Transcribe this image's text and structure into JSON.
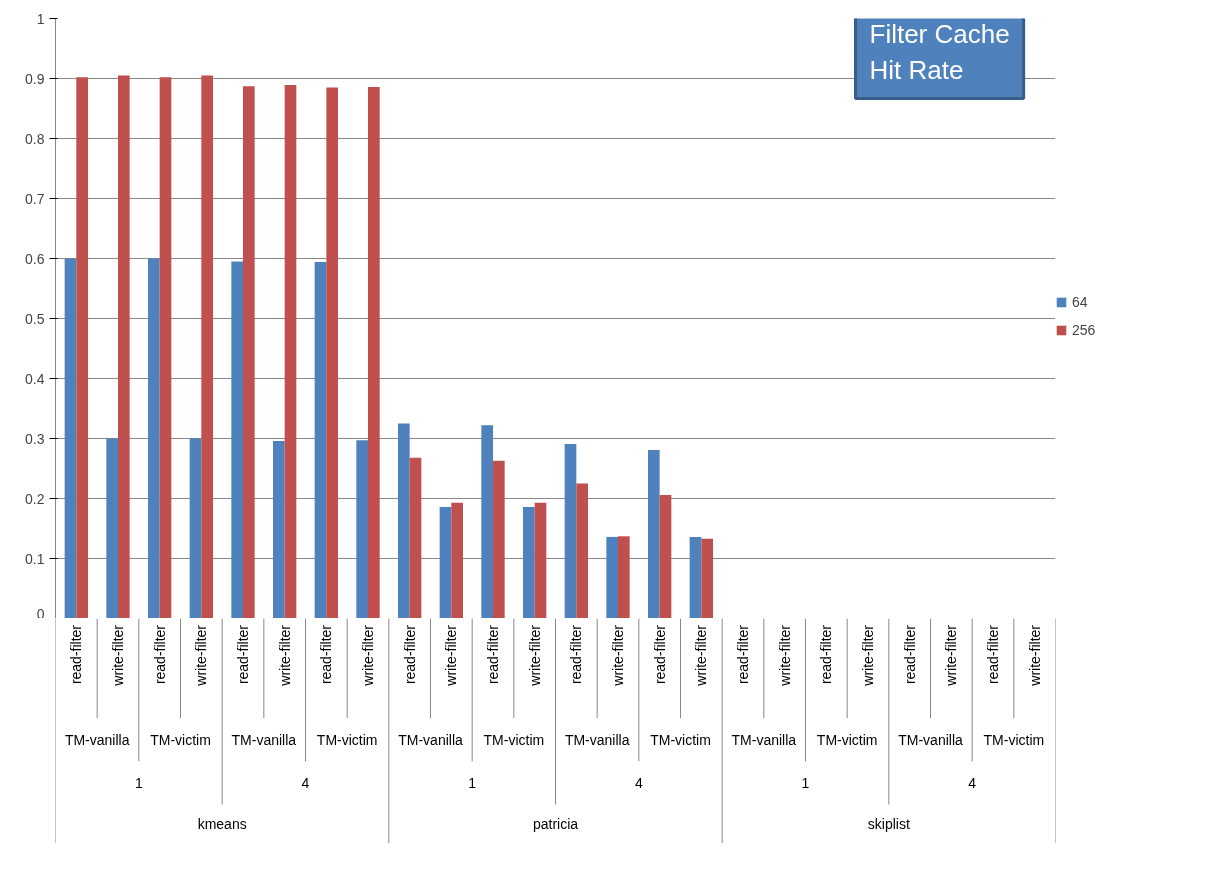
{
  "chart_data": {
    "type": "bar",
    "title": "Filter Cache Hit Rate",
    "categories": [
      "read-filter",
      "write-filter",
      "read-filter",
      "write-filter",
      "read-filter",
      "write-filter",
      "read-filter",
      "write-filter",
      "read-filter",
      "write-filter",
      "read-filter",
      "write-filter",
      "read-filter",
      "write-filter",
      "read-filter",
      "write-filter",
      "read-filter",
      "write-filter",
      "read-filter",
      "write-filter",
      "read-filter",
      "write-filter",
      "read-filter",
      "write-filter"
    ],
    "series": [
      {
        "name": "64",
        "color": "#4f81bd",
        "values": [
          0.6,
          0.3,
          0.6,
          0.3,
          0.595,
          0.296,
          0.594,
          0.297,
          0.325,
          0.186,
          0.322,
          0.186,
          0.291,
          0.136,
          0.281,
          0.136,
          0,
          0,
          0,
          0,
          0,
          0,
          0,
          0
        ]
      },
      {
        "name": "256",
        "color": "#c0504d",
        "values": [
          0.902,
          0.905,
          0.902,
          0.905,
          0.887,
          0.889,
          0.885,
          0.886,
          0.268,
          0.193,
          0.263,
          0.193,
          0.225,
          0.137,
          0.206,
          0.133,
          0,
          0,
          0,
          0,
          0,
          0,
          0,
          0
        ]
      }
    ],
    "annotations": [
      "TM-vanilla",
      "TM-victim",
      "TM-vanilla",
      "TM-victim",
      "TM-vanilla",
      "TM-victim",
      "TM-vanilla",
      "TM-victim",
      "TM-vanilla",
      "TM-victim",
      "TM-vanilla",
      "TM-victim",
      "1",
      "4",
      "1",
      "4",
      "1",
      "4",
      "kmeans",
      "patricia",
      "skiplist"
    ],
    "ylim": [
      0,
      1
    ],
    "yticks": [
      0,
      0.1,
      0.2,
      0.3,
      0.4,
      0.5,
      0.6,
      0.7,
      0.8,
      0.9,
      1
    ],
    "grid": "y",
    "legend": "right"
  }
}
